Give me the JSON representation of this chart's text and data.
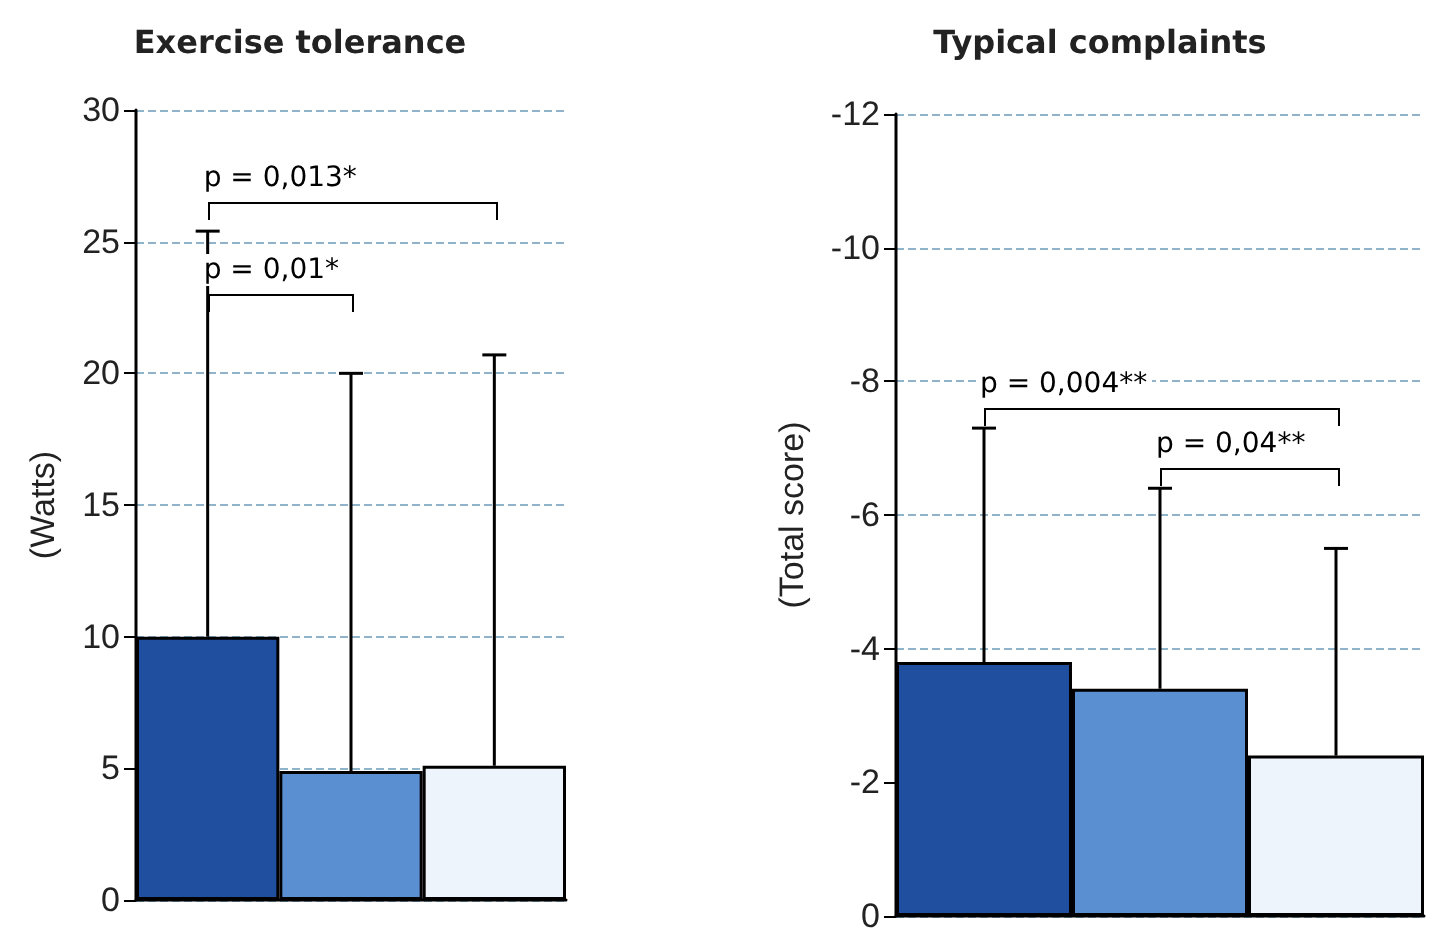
{
  "chart_data": [
    {
      "type": "bar",
      "title": "Exercise tolerance",
      "ylabel": "(Watts)",
      "categories": [
        null,
        null,
        null
      ],
      "values": [
        10,
        4.9,
        5.1
      ],
      "colors": [
        "#1f4f9e",
        "#5a8fd2",
        "#eef4fb"
      ],
      "errors": [
        [
          10,
          25.4
        ],
        [
          4.9,
          20
        ],
        [
          5.1,
          20.7
        ]
      ],
      "ylim": [
        0,
        30
      ],
      "yticks": [
        0,
        5,
        10,
        15,
        20,
        25,
        30
      ],
      "grid": "y",
      "annotations": [
        "p = 0,01*",
        "p = 0,013*"
      ]
    },
    {
      "type": "bar",
      "title": "Typical complaints",
      "ylabel": "(Total score)",
      "categories": [
        null,
        null,
        null
      ],
      "values": [
        -3.8,
        -3.4,
        -2.4
      ],
      "colors": [
        "#1f4f9e",
        "#5a8fd2",
        "#eef4fb"
      ],
      "errors": [
        [
          -7.3,
          -3.8
        ],
        [
          -6.4,
          -3.4
        ],
        [
          -5.5,
          -2.4
        ]
      ],
      "ylim": [
        0,
        -12
      ],
      "yticks": [
        0,
        -2,
        -4,
        -6,
        -8,
        -10,
        -12
      ],
      "grid": "y",
      "annotations": [
        "p = 0,004**",
        "p = 0,04**"
      ]
    }
  ]
}
